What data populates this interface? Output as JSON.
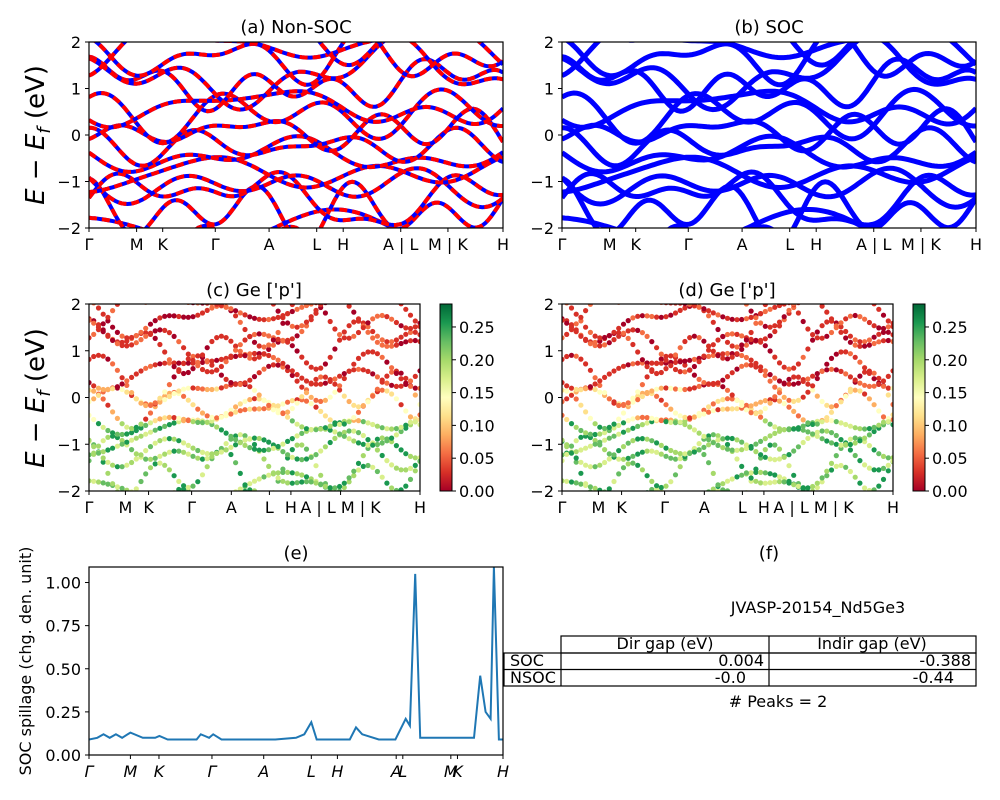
{
  "figure": {
    "panels": {
      "a": {
        "title": "(a) Non-SOC"
      },
      "b": {
        "title": "(b) SOC"
      },
      "c": {
        "title": "(c)  Ge ['p']"
      },
      "d": {
        "title": "(d) Ge ['p']"
      },
      "e": {
        "title": "(e)"
      },
      "f": {
        "title": "(f)"
      }
    },
    "band_ylabel": "E − E",
    "band_ylabel_sub": "f",
    "band_ylabel_unit": " (eV)",
    "spillage_ylabel": "SOC spillage (chg. den. unit)",
    "colorbar_ticks": [
      "0.00",
      "0.05",
      "0.10",
      "0.15",
      "0.20",
      "0.25"
    ],
    "colors": {
      "nonsoc_band_red": "#ff0000",
      "nonsoc_band_blue": "#0000ff",
      "soc_band": "#0000ff",
      "spillage_line": "#1f77b4",
      "colormap": [
        "#a50026",
        "#d73027",
        "#f46d43",
        "#fdae61",
        "#fee08b",
        "#ffffbf",
        "#d9ef8b",
        "#a6d96a",
        "#66bd63",
        "#1a9850",
        "#006837"
      ]
    },
    "table": {
      "jid": "JVASP-20154_Nd5Ge3",
      "headers": [
        "",
        "Dir gap (eV)",
        "Indir gap (eV)"
      ],
      "rows": [
        {
          "label": "SOC",
          "dir": "0.004",
          "indir": "-0.388"
        },
        {
          "label": "NSOC",
          "dir": "-0.0",
          "indir": "-0.44"
        }
      ],
      "peaks": "# Peaks = 2"
    }
  },
  "chart_data": [
    {
      "type": "line",
      "panel": "a",
      "title": "(a) Non-SOC",
      "ylabel": "E − E_f (eV)",
      "ylim": [
        -2,
        2
      ],
      "yticks": [
        -2,
        -1,
        0,
        1,
        2
      ],
      "kpath_ticks": [
        {
          "label": "Γ",
          "k": 0.0
        },
        {
          "label": "M",
          "k": 0.115
        },
        {
          "label": "K",
          "k": 0.178
        },
        {
          "label": "Γ",
          "k": 0.305
        },
        {
          "label": "A",
          "k": 0.435
        },
        {
          "label": "L",
          "k": 0.55
        },
        {
          "label": "H",
          "k": 0.614
        },
        {
          "label": "A | L",
          "k": 0.753
        },
        {
          "label": "M | K",
          "k": 0.867
        },
        {
          "label": "H",
          "k": 1.0
        }
      ],
      "series_style": "red/blue dashed bands (spin up/down)"
    },
    {
      "type": "line",
      "panel": "b",
      "title": "(b) SOC",
      "ylim": [
        -2,
        2
      ],
      "yticks": [
        -2,
        -1,
        0,
        1,
        2
      ],
      "kpath_ticks": [
        {
          "label": "Γ",
          "k": 0.0
        },
        {
          "label": "M",
          "k": 0.115
        },
        {
          "label": "K",
          "k": 0.178
        },
        {
          "label": "Γ",
          "k": 0.305
        },
        {
          "label": "A",
          "k": 0.435
        },
        {
          "label": "L",
          "k": 0.55
        },
        {
          "label": "H",
          "k": 0.614
        },
        {
          "label": "A | L",
          "k": 0.753
        },
        {
          "label": "M | K",
          "k": 0.867
        },
        {
          "label": "H",
          "k": 1.0
        }
      ],
      "series_style": "blue bands"
    },
    {
      "type": "scatter",
      "panel": "c",
      "title": "(c)  Ge ['p']",
      "ylabel": "E − E_f (eV)",
      "ylim": [
        -2,
        2
      ],
      "colorbar": {
        "min": 0.0,
        "max": 0.285,
        "cmap": "RdYlGn"
      },
      "kpath_ticks": [
        {
          "label": "Γ",
          "k": 0.0
        },
        {
          "label": "M",
          "k": 0.11
        },
        {
          "label": "K",
          "k": 0.18
        },
        {
          "label": "Γ",
          "k": 0.31
        },
        {
          "label": "A",
          "k": 0.43
        },
        {
          "label": "L",
          "k": 0.545
        },
        {
          "label": "H",
          "k": 0.61
        },
        {
          "label": "A | L M | K",
          "k": 0.76
        },
        {
          "label": "H",
          "k": 1.0
        }
      ]
    },
    {
      "type": "scatter",
      "panel": "d",
      "title": "(d) Ge ['p']",
      "ylim": [
        -2,
        2
      ],
      "colorbar": {
        "min": 0.0,
        "max": 0.285,
        "cmap": "RdYlGn"
      },
      "kpath_ticks": [
        {
          "label": "Γ",
          "k": 0.0
        },
        {
          "label": "M",
          "k": 0.11
        },
        {
          "label": "K",
          "k": 0.18
        },
        {
          "label": "Γ",
          "k": 0.31
        },
        {
          "label": "A",
          "k": 0.43
        },
        {
          "label": "L",
          "k": 0.545
        },
        {
          "label": "H",
          "k": 0.61
        },
        {
          "label": "A | L M | K",
          "k": 0.76
        },
        {
          "label": "H",
          "k": 1.0
        }
      ]
    },
    {
      "type": "line",
      "panel": "e",
      "title": "(e)",
      "ylabel": "SOC spillage (chg. den. unit)",
      "ylim": [
        0,
        1.09
      ],
      "yticks": [
        0.0,
        0.25,
        0.5,
        0.75,
        1.0
      ],
      "xtick_labels": [
        {
          "label": "Γ",
          "k": 0.0
        },
        {
          "label": "M",
          "k": 0.1
        },
        {
          "label": "K",
          "k": 0.169
        },
        {
          "label": "Γ",
          "k": 0.297
        },
        {
          "label": "A",
          "k": 0.422
        },
        {
          "label": "L",
          "k": 0.537
        },
        {
          "label": "H",
          "k": 0.6
        },
        {
          "label": "A",
          "k": 0.742
        },
        {
          "label": "L",
          "k": 0.758
        },
        {
          "label": "M",
          "k": 0.874
        },
        {
          "label": "K",
          "k": 0.89
        },
        {
          "label": "H",
          "k": 1.0
        }
      ],
      "x": [
        0.0,
        0.02,
        0.035,
        0.05,
        0.065,
        0.08,
        0.1,
        0.13,
        0.16,
        0.17,
        0.19,
        0.22,
        0.26,
        0.27,
        0.28,
        0.29,
        0.3,
        0.32,
        0.36,
        0.4,
        0.45,
        0.5,
        0.52,
        0.537,
        0.55,
        0.6,
        0.63,
        0.645,
        0.66,
        0.7,
        0.74,
        0.765,
        0.775,
        0.788,
        0.8,
        0.83,
        0.87,
        0.93,
        0.945,
        0.958,
        0.97,
        0.978,
        0.99,
        1.0
      ],
      "y": [
        0.09,
        0.1,
        0.12,
        0.1,
        0.12,
        0.1,
        0.13,
        0.1,
        0.1,
        0.11,
        0.09,
        0.09,
        0.09,
        0.12,
        0.11,
        0.1,
        0.12,
        0.09,
        0.09,
        0.09,
        0.09,
        0.1,
        0.12,
        0.19,
        0.09,
        0.09,
        0.09,
        0.16,
        0.12,
        0.09,
        0.09,
        0.21,
        0.17,
        1.05,
        0.1,
        0.1,
        0.1,
        0.1,
        0.46,
        0.25,
        0.21,
        1.09,
        0.09,
        0.09
      ]
    }
  ]
}
